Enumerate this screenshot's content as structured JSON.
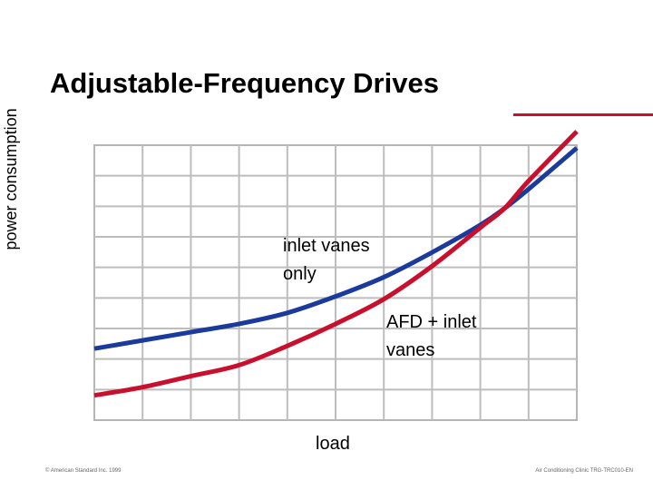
{
  "slide": {
    "title": "Adjustable-Frequency Drives",
    "footer_left": "© American Standard Inc. 1999",
    "footer_right": "Air Conditioning Clinic TRG-TRC010-EN",
    "accent_color": "#c8102e"
  },
  "chart_data": {
    "type": "line",
    "title": "Adjustable-Frequency Drives",
    "xlabel": "load",
    "ylabel": "power consumption",
    "grid": true,
    "xlim": [
      0,
      1
    ],
    "ylim": [
      0,
      1
    ],
    "series": [
      {
        "name": "inlet vanes only",
        "color": "#1a3a9c",
        "x": [
          0,
          0.1,
          0.2,
          0.3,
          0.4,
          0.5,
          0.6,
          0.7,
          0.8,
          0.85,
          0.9,
          1.0
        ],
        "values": [
          0.26,
          0.29,
          0.32,
          0.35,
          0.39,
          0.45,
          0.52,
          0.61,
          0.71,
          0.77,
          0.84,
          0.99
        ]
      },
      {
        "name": "AFD + inlet vanes",
        "color": "#c8102e",
        "x": [
          0,
          0.1,
          0.2,
          0.3,
          0.4,
          0.5,
          0.6,
          0.7,
          0.8,
          0.85,
          0.9,
          1.0
        ],
        "values": [
          0.09,
          0.12,
          0.16,
          0.2,
          0.27,
          0.35,
          0.44,
          0.56,
          0.7,
          0.77,
          0.87,
          1.05
        ]
      }
    ],
    "annotations": [
      {
        "text_lines": [
          "inlet vanes",
          "only"
        ],
        "series": "inlet vanes only"
      },
      {
        "text_lines": [
          "AFD +  inlet",
          "vanes"
        ],
        "series": "AFD + inlet vanes"
      }
    ]
  }
}
